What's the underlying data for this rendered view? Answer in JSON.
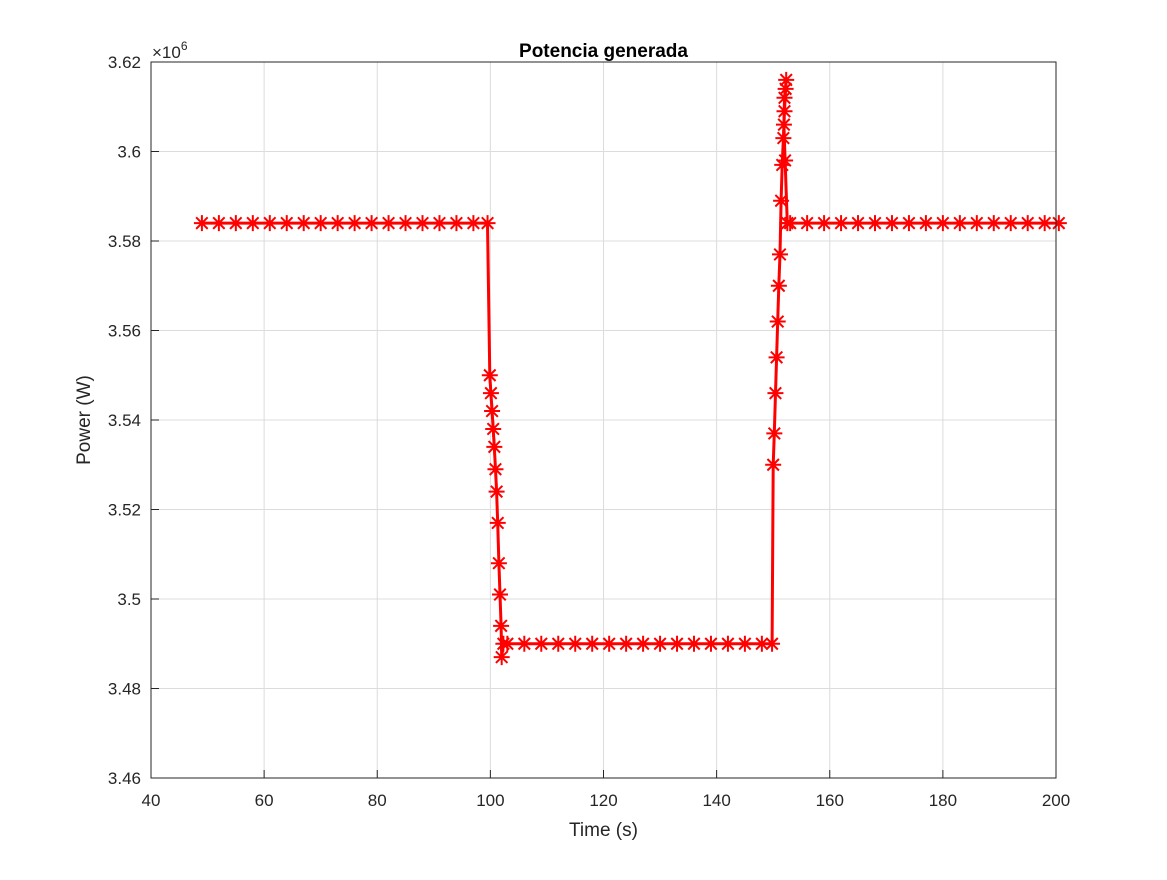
{
  "chart_data": {
    "type": "line",
    "title": "Potencia generada",
    "xlabel": "Time (s)",
    "ylabel": "Power (W)",
    "y_exponent_label": "×10",
    "y_exponent_power": "6",
    "xlim": [
      40,
      200
    ],
    "ylim": [
      3.46,
      3.62
    ],
    "xticks": [
      40,
      60,
      80,
      100,
      120,
      140,
      160,
      180,
      200
    ],
    "xtick_labels": [
      "40",
      "60",
      "80",
      "100",
      "120",
      "140",
      "160",
      "180",
      "200"
    ],
    "yticks": [
      3.46,
      3.48,
      3.5,
      3.52,
      3.54,
      3.56,
      3.58,
      3.6,
      3.62
    ],
    "ytick_labels": [
      "3.46",
      "3.48",
      "3.5",
      "3.52",
      "3.54",
      "3.56",
      "3.58",
      "3.6",
      "3.62"
    ],
    "grid": true,
    "line_color": "#ff0000",
    "marker": "asterisk",
    "series": [
      {
        "x": [
          49,
          52,
          55,
          58,
          61,
          64,
          67,
          70,
          73,
          76,
          79,
          82,
          85,
          88,
          91,
          94,
          97,
          99.5,
          99.9,
          100.1,
          100.3,
          100.5,
          100.7,
          100.9,
          101.1,
          101.3,
          101.5,
          101.7,
          101.9,
          102.0,
          102.3,
          103,
          106,
          109,
          112,
          115,
          118,
          121,
          124,
          127,
          130,
          133,
          136,
          139,
          142,
          145,
          148,
          149.8,
          150.0,
          150.2,
          150.4,
          150.6,
          150.8,
          151.0,
          151.2,
          151.4,
          151.6,
          151.8,
          152.0,
          152.2,
          152.3,
          152.0,
          151.9,
          152.1,
          152.5,
          153,
          156,
          159,
          162,
          165,
          168,
          171,
          174,
          177,
          180,
          183,
          186,
          189,
          192,
          195,
          198,
          200.5
        ],
        "y": [
          3.584,
          3.584,
          3.584,
          3.584,
          3.584,
          3.584,
          3.584,
          3.584,
          3.584,
          3.584,
          3.584,
          3.584,
          3.584,
          3.584,
          3.584,
          3.584,
          3.584,
          3.584,
          3.55,
          3.546,
          3.542,
          3.538,
          3.534,
          3.529,
          3.524,
          3.517,
          3.508,
          3.501,
          3.494,
          3.487,
          3.49,
          3.49,
          3.49,
          3.49,
          3.49,
          3.49,
          3.49,
          3.49,
          3.49,
          3.49,
          3.49,
          3.49,
          3.49,
          3.49,
          3.49,
          3.49,
          3.49,
          3.49,
          3.53,
          3.537,
          3.546,
          3.554,
          3.562,
          3.57,
          3.577,
          3.589,
          3.597,
          3.603,
          3.609,
          3.614,
          3.616,
          3.612,
          3.606,
          3.598,
          3.584,
          3.584,
          3.584,
          3.584,
          3.584,
          3.584,
          3.584,
          3.584,
          3.584,
          3.584,
          3.584,
          3.584,
          3.584,
          3.584,
          3.584,
          3.584,
          3.584,
          3.584
        ]
      }
    ]
  }
}
